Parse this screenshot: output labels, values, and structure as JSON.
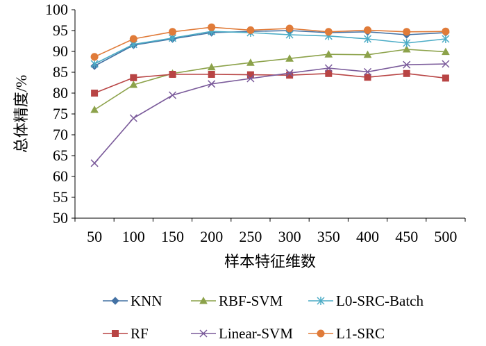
{
  "chart_data": {
    "type": "line",
    "title": "",
    "xlabel": "样本特征维数",
    "ylabel": "总体精度/%",
    "x": [
      50,
      100,
      150,
      200,
      250,
      300,
      350,
      400,
      450,
      500
    ],
    "ylim": [
      50,
      100
    ],
    "yticks": [
      50,
      55,
      60,
      65,
      70,
      75,
      80,
      85,
      90,
      95,
      100
    ],
    "grid": false,
    "legend_position": "bottom",
    "series": [
      {
        "name": "KNN",
        "marker": "diamond",
        "color": "#4472a4",
        "values": [
          86.5,
          91.5,
          93.0,
          94.5,
          94.8,
          95.0,
          94.5,
          94.7,
          94.0,
          94.5
        ]
      },
      {
        "name": "RBF-SVM",
        "marker": "triangle",
        "color": "#8ca24a",
        "values": [
          76.0,
          82.0,
          84.7,
          86.2,
          87.3,
          88.3,
          89.3,
          89.2,
          90.5,
          89.9
        ]
      },
      {
        "name": "L0-SRC-Batch",
        "marker": "asterisk",
        "color": "#4bacc6",
        "values": [
          87.0,
          91.7,
          93.2,
          94.8,
          94.5,
          94.0,
          93.7,
          93.0,
          92.0,
          93.0
        ]
      },
      {
        "name": "RF",
        "marker": "square",
        "color": "#b84444",
        "values": [
          80.0,
          83.7,
          84.5,
          84.5,
          84.4,
          84.3,
          84.7,
          83.8,
          84.7,
          83.6
        ]
      },
      {
        "name": "Linear-SVM",
        "marker": "x",
        "color": "#7a5a9a",
        "values": [
          63.2,
          74.0,
          79.5,
          82.2,
          83.5,
          84.8,
          86.0,
          85.1,
          86.8,
          87.0
        ]
      },
      {
        "name": "L1-SRC",
        "marker": "circle",
        "color": "#e07b39",
        "values": [
          88.7,
          93.0,
          94.7,
          95.8,
          95.1,
          95.5,
          94.7,
          95.1,
          94.7,
          94.8
        ]
      }
    ]
  }
}
